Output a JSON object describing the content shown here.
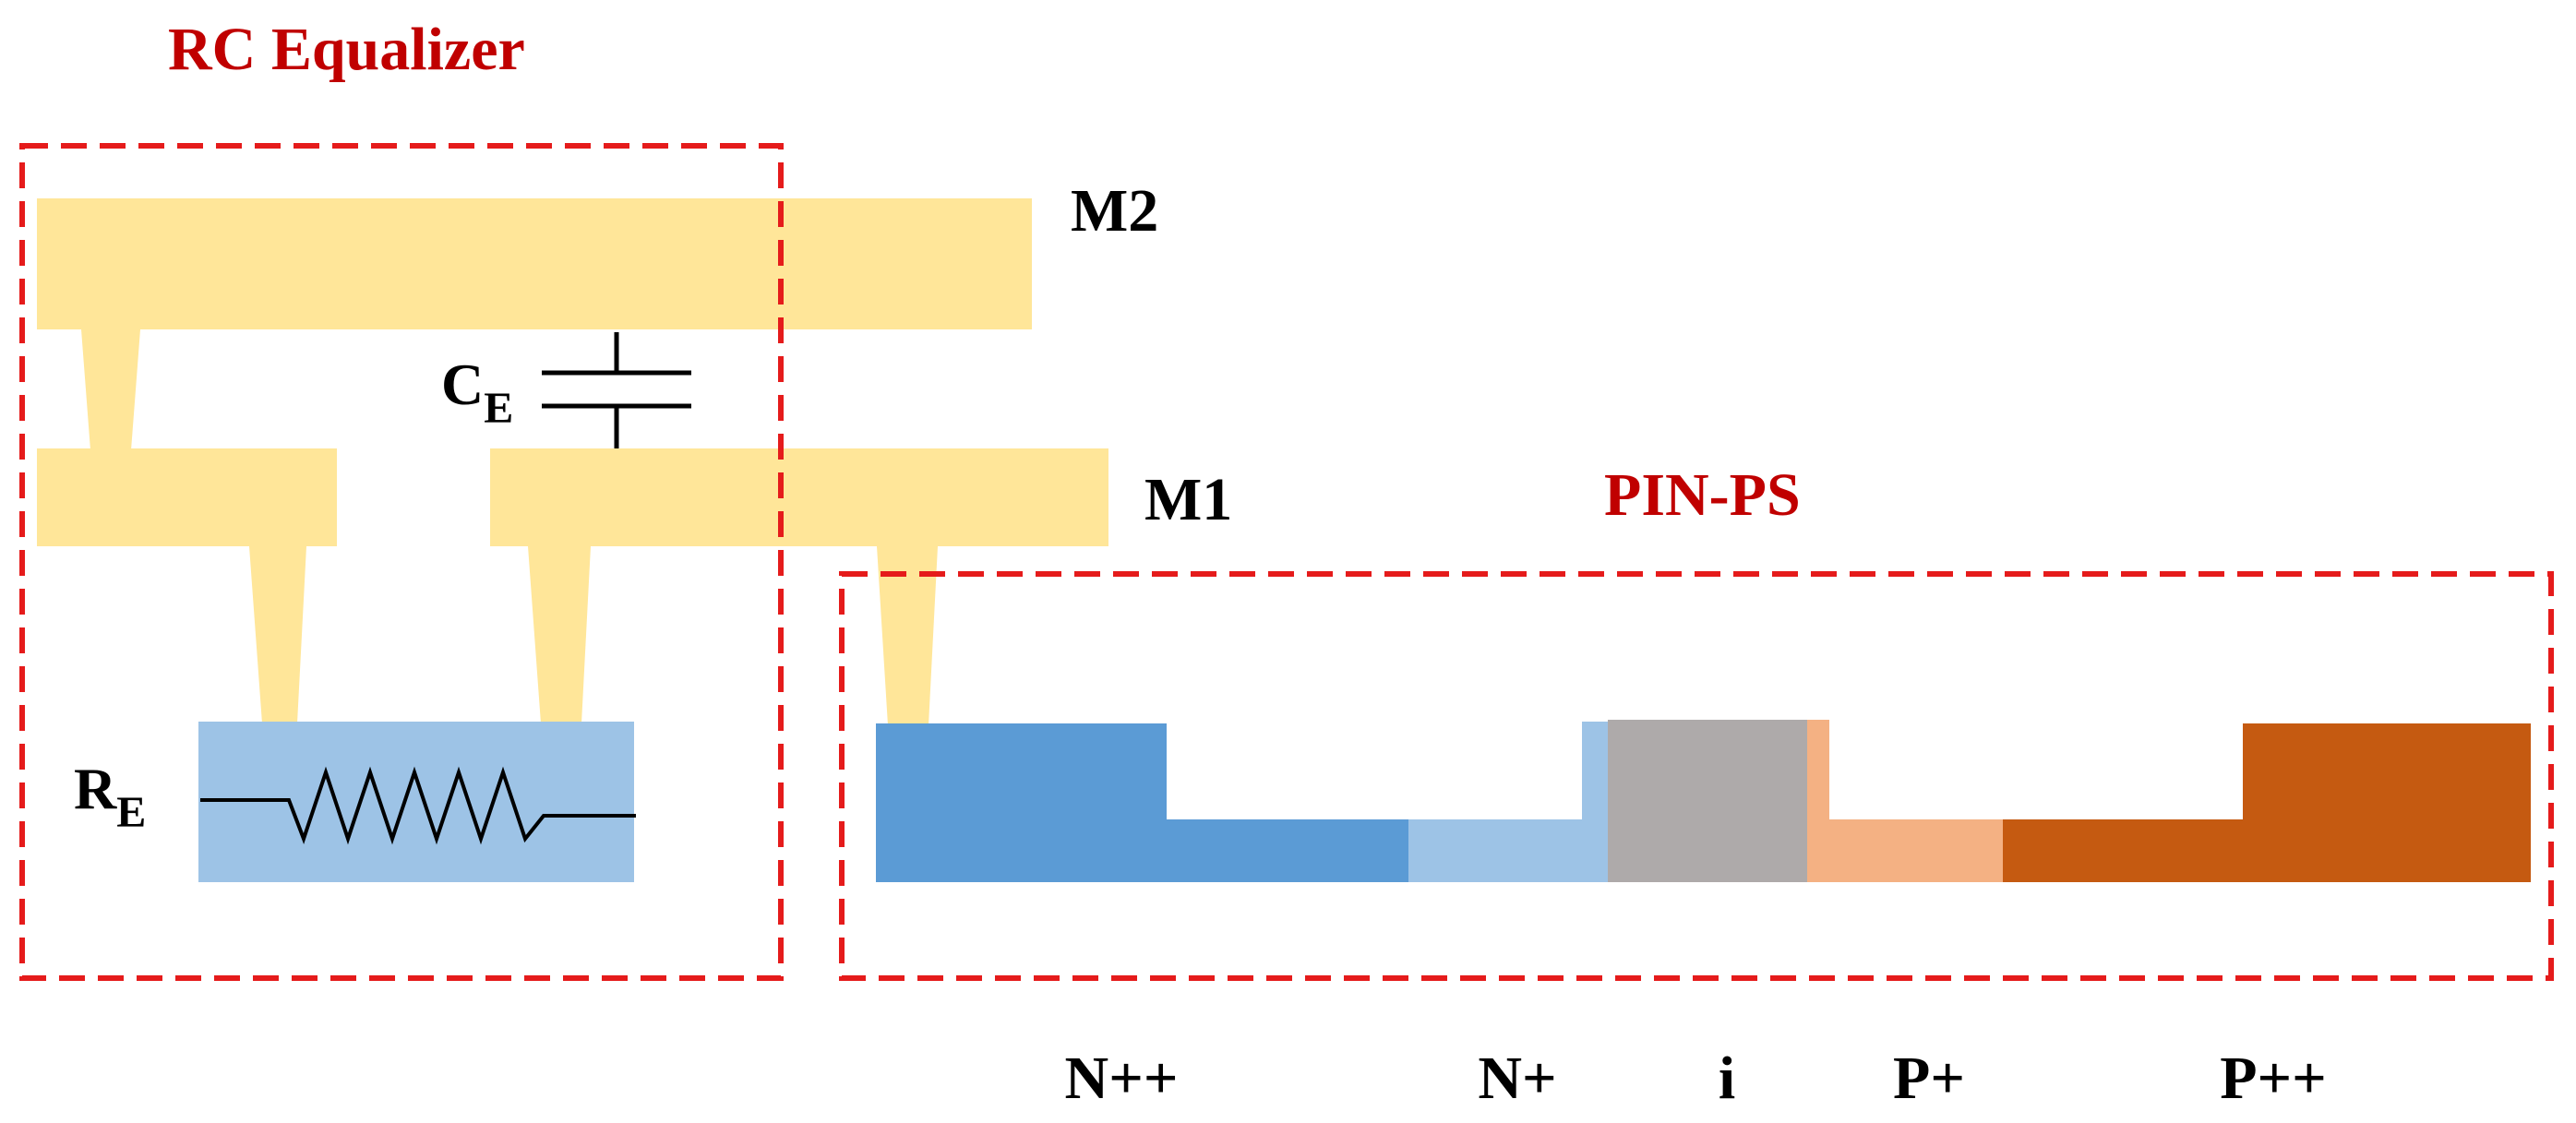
{
  "labels": {
    "rc_equalizer": "RC Equalizer",
    "pin_ps": "PIN-PS",
    "m2": "M2",
    "m1": "M1",
    "cap_main": "C",
    "cap_sub": "E",
    "res_main": "R",
    "res_sub": "E"
  },
  "regions": [
    {
      "name": "N++",
      "color": "#5b9bd5"
    },
    {
      "name": "N+",
      "color": "#9dc3e6"
    },
    {
      "name": "i",
      "color": "#aeaaaa"
    },
    {
      "name": "P+",
      "color": "#f4b183"
    },
    {
      "name": "P++",
      "color": "#c55a11"
    }
  ],
  "colors": {
    "metal": "#ffe699",
    "resistor_block": "#9dc3e6",
    "dashed_box": "#e51b1b",
    "title_text": "#c00000"
  }
}
